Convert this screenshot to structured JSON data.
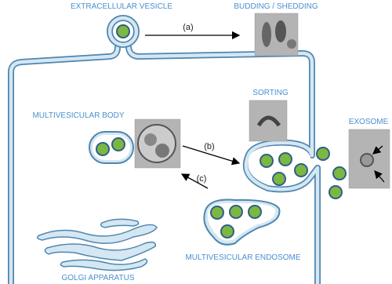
{
  "labels": {
    "extracellular_vesicle": "EXTRACELLULAR VESICLE",
    "budding_shedding": "BUDDING / SHEDDING",
    "arrow_a": "(a)",
    "multivesicular_body": "MULTIVESICULAR BODY",
    "sorting": "SORTING",
    "exosome": "EXOSOME",
    "arrow_b": "(b)",
    "arrow_c": "(c)",
    "multivesicular_endosome": "MULTIVESICULAR ENDOSOME",
    "golgi_apparatus": "GOLGI APPARATUS"
  }
}
